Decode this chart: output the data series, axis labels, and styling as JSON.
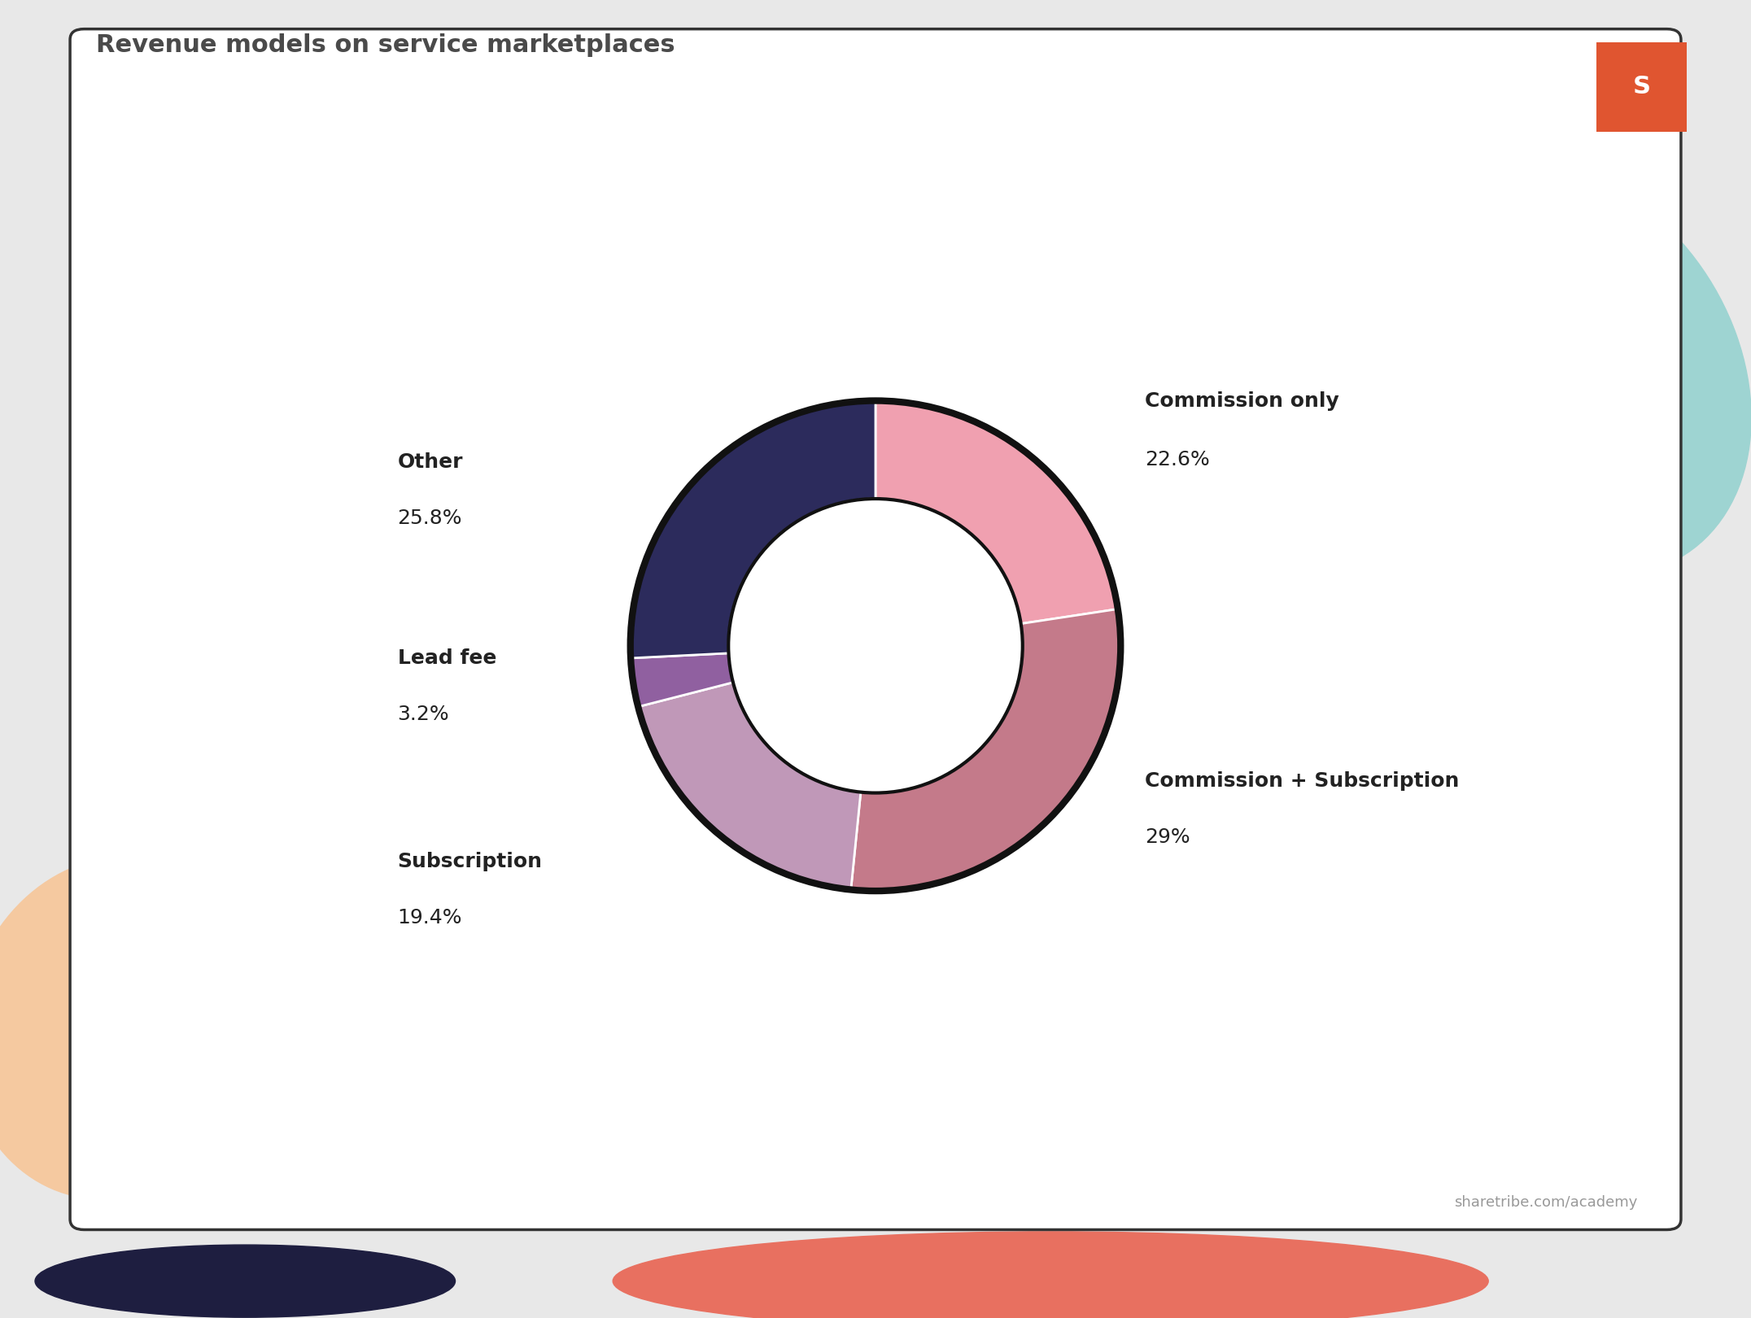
{
  "title": "Revenue models on service marketplaces",
  "title_color": "#4a4a4a",
  "title_fontsize": 22,
  "segments": [
    {
      "label": "Commission only",
      "pct_label": "22.6%",
      "value": 22.6,
      "color": "#f0a0b0"
    },
    {
      "label": "Commission + Subscription",
      "pct_label": "29%",
      "value": 29.0,
      "color": "#c47a8a"
    },
    {
      "label": "Subscription",
      "pct_label": "19.4%",
      "value": 19.4,
      "color": "#c098b8"
    },
    {
      "label": "Lead fee",
      "pct_label": "3.2%",
      "value": 3.2,
      "color": "#9060a0"
    },
    {
      "label": "Other",
      "pct_label": "25.8%",
      "value": 25.8,
      "color": "#2c2b5c"
    }
  ],
  "donut_width": 0.4,
  "bg_color": "#e8e8e8",
  "card_color": "#ffffff",
  "footer_text": "sharetribe.com/academy",
  "footer_color": "#999999",
  "blob_teal_color": "#9ed4d2",
  "blob_orange_color": "#f5c9a0",
  "blob_salmon_color": "#e87060",
  "blob_navy_color": "#1e1e40",
  "label_fontsize": 18,
  "label_color": "#222222"
}
